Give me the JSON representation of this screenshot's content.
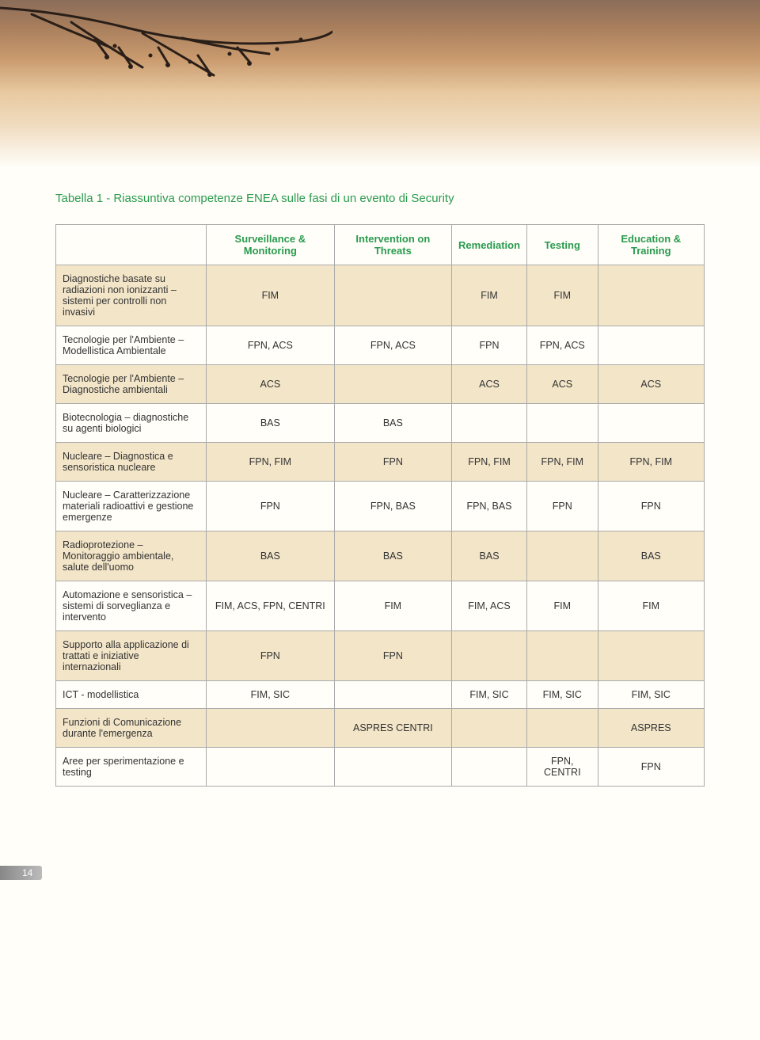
{
  "title": "Tabella 1 - Riassuntiva competenze ENEA sulle fasi di un evento di Security",
  "page_number": "14",
  "colors": {
    "accent_green": "#2a9b4e",
    "shaded_row": "#f3e5c8",
    "border": "#aaaaaa",
    "page_bg": "#fffef9"
  },
  "table": {
    "columns": [
      "",
      "Surveillance & Monitoring",
      "Intervention on Threats",
      "Remediation",
      "Testing",
      "Education & Training"
    ],
    "column_widths_pct": [
      23,
      15.5,
      15.5,
      15.5,
      15.5,
      15
    ],
    "rows": [
      {
        "label": "Diagnostiche basate su radiazioni non ionizzanti – sistemi per controlli non invasivi",
        "cells": [
          "FIM",
          "",
          "FIM",
          "FIM",
          ""
        ],
        "shaded": true
      },
      {
        "label": "Tecnologie per l'Ambiente – Modellistica Ambientale",
        "cells": [
          "FPN, ACS",
          "FPN, ACS",
          "FPN",
          "FPN, ACS",
          ""
        ],
        "shaded": false
      },
      {
        "label": "Tecnologie per l'Ambiente – Diagnostiche ambientali",
        "cells": [
          "ACS",
          "",
          "ACS",
          "ACS",
          "ACS"
        ],
        "shaded": true
      },
      {
        "label": "Biotecnologia – diagnostiche su agenti biologici",
        "cells": [
          "BAS",
          "BAS",
          "",
          "",
          ""
        ],
        "shaded": false
      },
      {
        "label": "Nucleare – Diagnostica e sensoristica nucleare",
        "cells": [
          "FPN, FIM",
          "FPN",
          "FPN, FIM",
          "FPN, FIM",
          "FPN, FIM"
        ],
        "shaded": true
      },
      {
        "label": "Nucleare – Caratterizzazione materiali radioattivi e gestione emergenze",
        "cells": [
          "FPN",
          "FPN, BAS",
          "FPN, BAS",
          "FPN",
          "FPN"
        ],
        "shaded": false
      },
      {
        "label": "Radioprotezione – Monitoraggio ambientale, salute dell'uomo",
        "cells": [
          "BAS",
          "BAS",
          "BAS",
          "",
          "BAS"
        ],
        "shaded": true
      },
      {
        "label": "Automazione e sensoristica – sistemi di sorveglianza e intervento",
        "cells": [
          "FIM, ACS, FPN, CENTRI",
          "FIM",
          "FIM, ACS",
          "FIM",
          "FIM"
        ],
        "shaded": false
      },
      {
        "label": "Supporto alla applicazione di trattati  e iniziative internazionali",
        "cells": [
          "FPN",
          "FPN",
          "",
          "",
          ""
        ],
        "shaded": true
      },
      {
        "label": "ICT - modellistica",
        "cells": [
          "FIM, SIC",
          "",
          "FIM, SIC",
          "FIM, SIC",
          "FIM, SIC"
        ],
        "shaded": false
      },
      {
        "label": "Funzioni di Comunicazione durante l'emergenza",
        "cells": [
          "",
          "ASPRES CENTRI",
          "",
          "",
          "ASPRES"
        ],
        "shaded": true
      },
      {
        "label": "Aree per sperimentazione e testing",
        "cells": [
          "",
          "",
          "",
          "FPN, CENTRI",
          "FPN"
        ],
        "shaded": false
      }
    ]
  }
}
